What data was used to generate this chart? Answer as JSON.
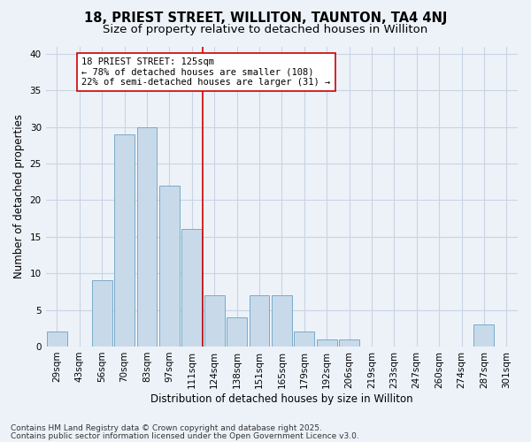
{
  "title1": "18, PRIEST STREET, WILLITON, TAUNTON, TA4 4NJ",
  "title2": "Size of property relative to detached houses in Williton",
  "xlabel": "Distribution of detached houses by size in Williton",
  "ylabel": "Number of detached properties",
  "categories": [
    "29sqm",
    "43sqm",
    "56sqm",
    "70sqm",
    "83sqm",
    "97sqm",
    "111sqm",
    "124sqm",
    "138sqm",
    "151sqm",
    "165sqm",
    "179sqm",
    "192sqm",
    "206sqm",
    "219sqm",
    "233sqm",
    "247sqm",
    "260sqm",
    "274sqm",
    "287sqm",
    "301sqm"
  ],
  "values": [
    2,
    0,
    9,
    29,
    30,
    22,
    16,
    7,
    4,
    7,
    7,
    2,
    1,
    1,
    0,
    0,
    0,
    0,
    0,
    3,
    0
  ],
  "bar_color": "#c8daea",
  "bar_edge_color": "#7aaac8",
  "bar_edge_width": 0.7,
  "grid_color": "#c8d4e4",
  "bg_color": "#edf2f9",
  "vline_color": "#cc0000",
  "annotation_title": "18 PRIEST STREET: 125sqm",
  "annotation_line1": "← 78% of detached houses are smaller (108)",
  "annotation_line2": "22% of semi-detached houses are larger (31) →",
  "annotation_box_color": "#ffffff",
  "annotation_border_color": "#cc0000",
  "ylim": [
    0,
    41
  ],
  "yticks": [
    0,
    5,
    10,
    15,
    20,
    25,
    30,
    35,
    40
  ],
  "footer1": "Contains HM Land Registry data © Crown copyright and database right 2025.",
  "footer2": "Contains public sector information licensed under the Open Government Licence v3.0.",
  "title_fontsize": 10.5,
  "subtitle_fontsize": 9.5,
  "axis_label_fontsize": 8.5,
  "tick_fontsize": 7.5,
  "annotation_fontsize": 7.5,
  "footer_fontsize": 6.5
}
